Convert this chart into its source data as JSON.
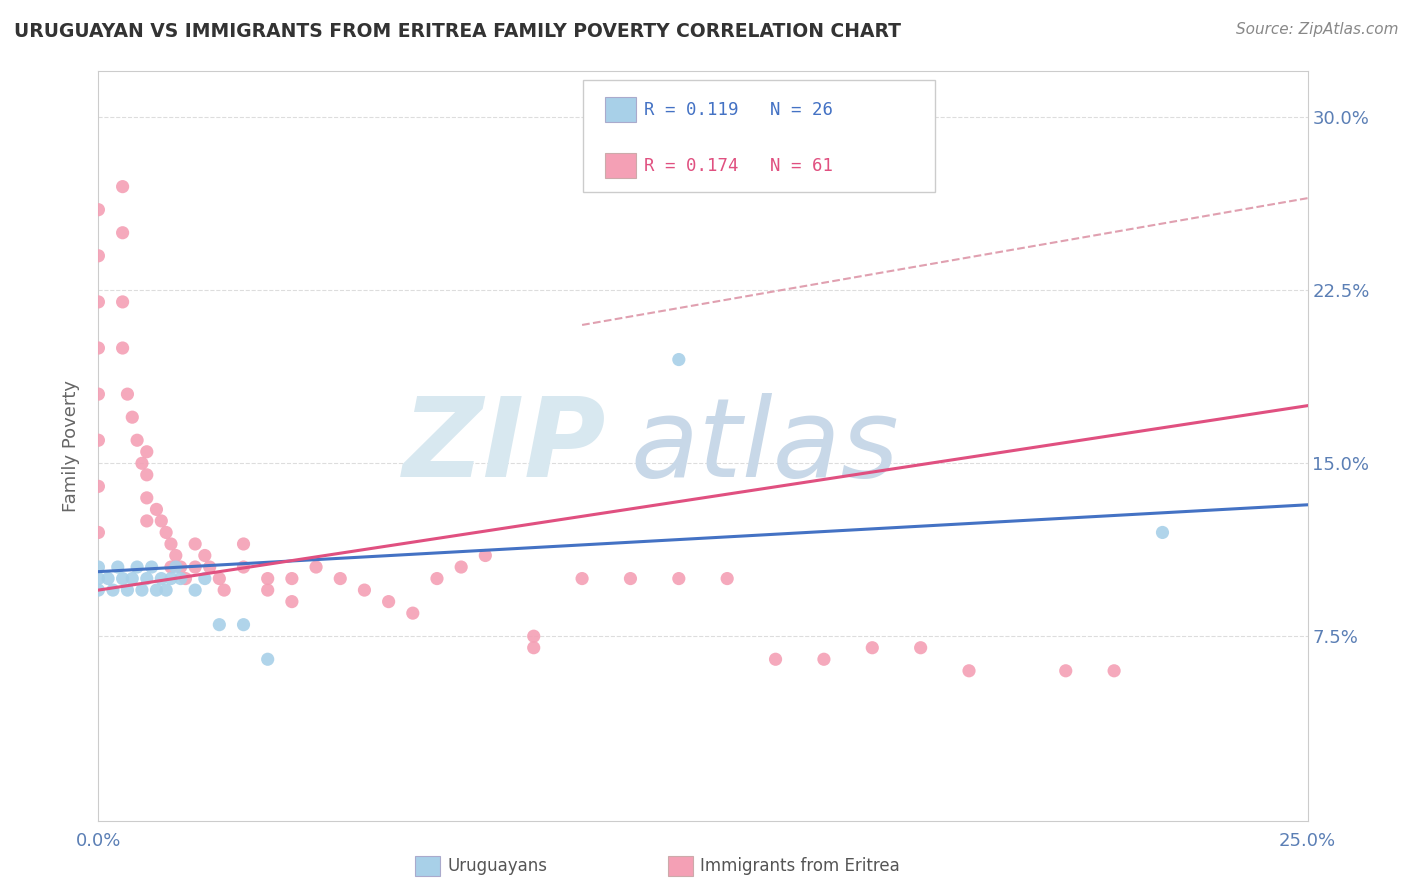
{
  "title": "URUGUAYAN VS IMMIGRANTS FROM ERITREA FAMILY POVERTY CORRELATION CHART",
  "source": "Source: ZipAtlas.com",
  "ylabel": "Family Poverty",
  "xlim": [
    0.0,
    0.25
  ],
  "ylim": [
    -0.005,
    0.32
  ],
  "xtick_labels": [
    "0.0%",
    "25.0%"
  ],
  "xtick_values": [
    0.0,
    0.25
  ],
  "ytick_labels": [
    "7.5%",
    "15.0%",
    "22.5%",
    "30.0%"
  ],
  "ytick_values": [
    0.075,
    0.15,
    0.225,
    0.3
  ],
  "color_uruguayan": "#a8d0e8",
  "color_eritrea": "#f4a0b5",
  "color_line_uruguayan": "#4472c4",
  "color_line_eritrea": "#e05080",
  "color_dashed": "#e0a0b0",
  "uruguayan_x": [
    0.0,
    0.0,
    0.0,
    0.002,
    0.003,
    0.004,
    0.005,
    0.006,
    0.007,
    0.008,
    0.009,
    0.01,
    0.011,
    0.012,
    0.013,
    0.014,
    0.015,
    0.016,
    0.017,
    0.02,
    0.022,
    0.025,
    0.03,
    0.035,
    0.12,
    0.22
  ],
  "uruguayan_y": [
    0.1,
    0.105,
    0.095,
    0.1,
    0.095,
    0.105,
    0.1,
    0.095,
    0.1,
    0.105,
    0.095,
    0.1,
    0.105,
    0.095,
    0.1,
    0.095,
    0.1,
    0.105,
    0.1,
    0.095,
    0.1,
    0.08,
    0.08,
    0.065,
    0.195,
    0.12
  ],
  "eritrea_x": [
    0.0,
    0.0,
    0.0,
    0.0,
    0.0,
    0.0,
    0.0,
    0.0,
    0.005,
    0.005,
    0.005,
    0.005,
    0.006,
    0.007,
    0.008,
    0.009,
    0.01,
    0.01,
    0.01,
    0.01,
    0.012,
    0.013,
    0.014,
    0.015,
    0.015,
    0.016,
    0.017,
    0.018,
    0.02,
    0.02,
    0.022,
    0.023,
    0.025,
    0.026,
    0.03,
    0.03,
    0.035,
    0.035,
    0.04,
    0.04,
    0.045,
    0.05,
    0.055,
    0.06,
    0.065,
    0.07,
    0.075,
    0.08,
    0.09,
    0.09,
    0.1,
    0.11,
    0.12,
    0.13,
    0.14,
    0.15,
    0.16,
    0.17,
    0.18,
    0.2,
    0.21
  ],
  "eritrea_y": [
    0.26,
    0.24,
    0.22,
    0.2,
    0.18,
    0.16,
    0.14,
    0.12,
    0.27,
    0.25,
    0.22,
    0.2,
    0.18,
    0.17,
    0.16,
    0.15,
    0.155,
    0.145,
    0.135,
    0.125,
    0.13,
    0.125,
    0.12,
    0.115,
    0.105,
    0.11,
    0.105,
    0.1,
    0.115,
    0.105,
    0.11,
    0.105,
    0.1,
    0.095,
    0.115,
    0.105,
    0.1,
    0.095,
    0.1,
    0.09,
    0.105,
    0.1,
    0.095,
    0.09,
    0.085,
    0.1,
    0.105,
    0.11,
    0.075,
    0.07,
    0.1,
    0.1,
    0.1,
    0.1,
    0.065,
    0.065,
    0.07,
    0.07,
    0.06,
    0.06,
    0.06
  ]
}
